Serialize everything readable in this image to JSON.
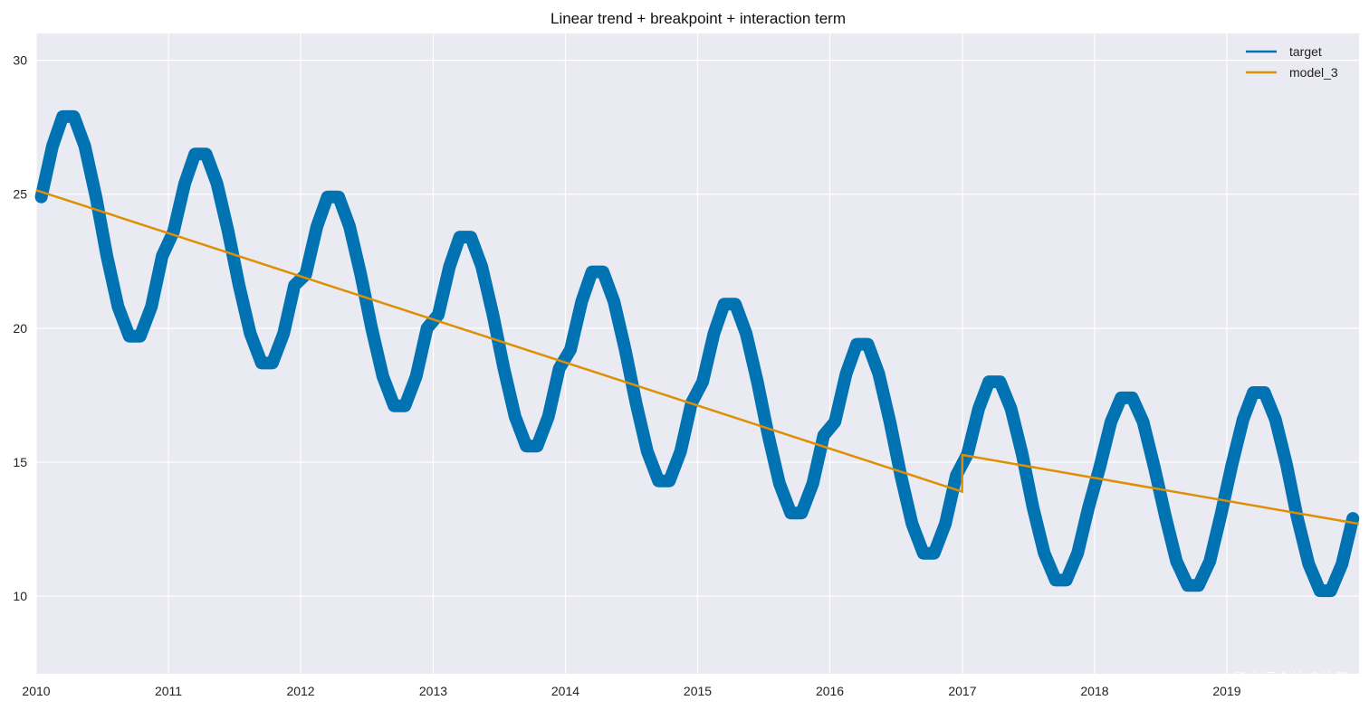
{
  "chart_data": {
    "type": "line",
    "title": "Linear trend + breakpoint + interaction term",
    "xlabel": "",
    "ylabel": "",
    "xlim": [
      "2010-01-01",
      "2019-12-31"
    ],
    "ylim": [
      7.1,
      31.0
    ],
    "x_ticks": [
      "2010",
      "2011",
      "2012",
      "2013",
      "2014",
      "2015",
      "2016",
      "2017",
      "2018",
      "2019"
    ],
    "y_ticks": [
      10,
      15,
      20,
      25,
      30
    ],
    "grid": true,
    "legend_position": "top-right",
    "colors": {
      "background": "#eaeaf2",
      "grid": "#ffffff",
      "target": "#0173b2",
      "model_3": "#de8f05"
    },
    "series": [
      {
        "name": "target",
        "x_start": "2010-01",
        "frequency": "monthly",
        "values": [
          24.9,
          26.8,
          27.9,
          27.9,
          26.8,
          24.9,
          22.7,
          20.8,
          19.7,
          19.7,
          20.8,
          22.7,
          23.6,
          25.4,
          26.5,
          26.5,
          25.4,
          23.6,
          21.6,
          19.8,
          18.7,
          18.7,
          19.8,
          21.6,
          22.0,
          23.8,
          24.9,
          24.9,
          23.8,
          22.0,
          20.0,
          18.2,
          17.1,
          17.1,
          18.2,
          20.0,
          20.5,
          22.3,
          23.4,
          23.4,
          22.3,
          20.5,
          18.5,
          16.7,
          15.6,
          15.6,
          16.7,
          18.5,
          19.2,
          21.0,
          22.1,
          22.1,
          21.0,
          19.2,
          17.2,
          15.4,
          14.3,
          14.3,
          15.4,
          17.2,
          18.0,
          19.8,
          20.9,
          20.9,
          19.8,
          18.0,
          16.0,
          14.2,
          13.1,
          13.1,
          14.2,
          16.0,
          16.5,
          18.3,
          19.4,
          19.4,
          18.3,
          16.5,
          14.5,
          12.7,
          11.6,
          11.6,
          12.7,
          14.5,
          15.3,
          17.0,
          18.0,
          18.0,
          17.0,
          15.3,
          13.3,
          11.6,
          10.6,
          10.6,
          11.6,
          13.3,
          14.8,
          16.5,
          17.4,
          17.4,
          16.5,
          14.8,
          13.0,
          11.3,
          10.4,
          10.4,
          11.3,
          13.0,
          14.9,
          16.6,
          17.6,
          17.6,
          16.6,
          14.9,
          12.9,
          11.2,
          10.2,
          10.2,
          11.2,
          12.9
        ]
      },
      {
        "name": "model_3",
        "points": [
          {
            "x": "2010-01-01",
            "y": 25.15
          },
          {
            "x": "2016-12-31",
            "y": 13.9
          },
          {
            "x": "2017-01-01",
            "y": 15.27
          },
          {
            "x": "2019-12-31",
            "y": 12.7
          }
        ]
      }
    ]
  },
  "watermark": "@稀土掘金技术社区"
}
